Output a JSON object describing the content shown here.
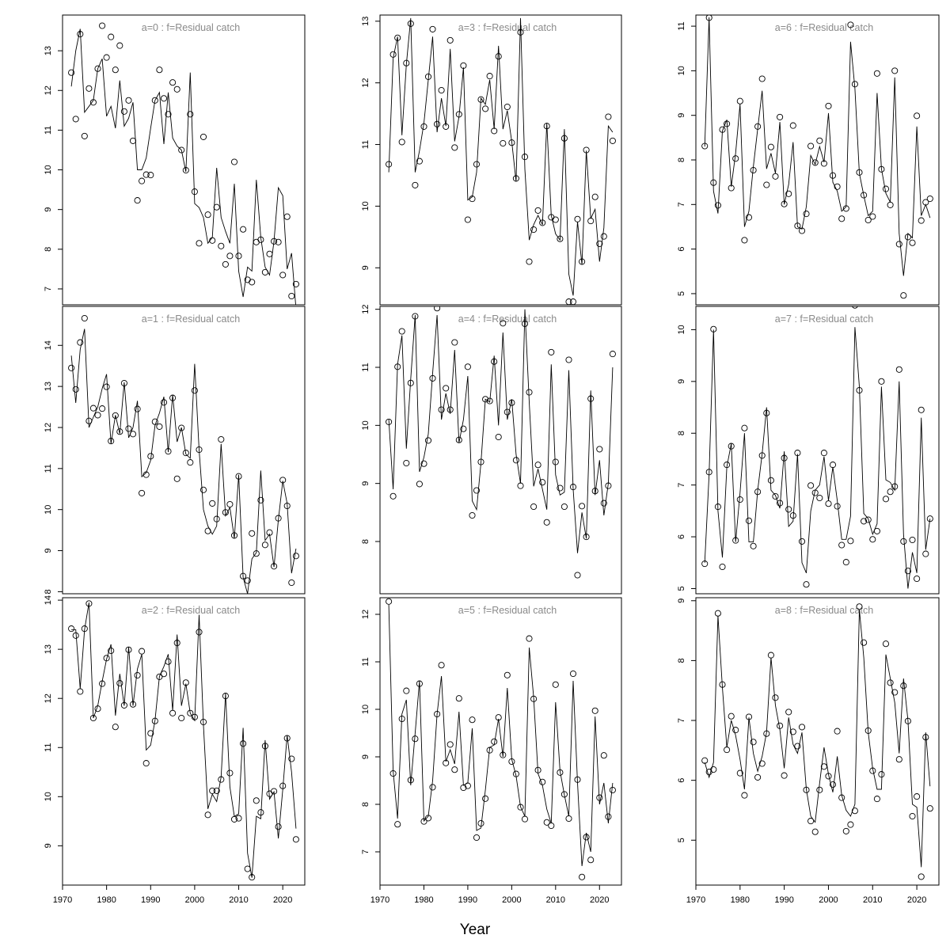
{
  "xlabel": "Year",
  "x_ticks": [
    1970,
    1980,
    1990,
    2000,
    2010,
    2020
  ],
  "years": [
    1972,
    1973,
    1974,
    1975,
    1976,
    1977,
    1978,
    1979,
    1980,
    1981,
    1982,
    1983,
    1984,
    1985,
    1986,
    1987,
    1988,
    1989,
    1990,
    1991,
    1992,
    1993,
    1994,
    1995,
    1996,
    1997,
    1998,
    1999,
    2000,
    2001,
    2002,
    2003,
    2004,
    2005,
    2006,
    2007,
    2008,
    2009,
    2010,
    2011,
    2012,
    2013,
    2014,
    2015,
    2016,
    2017,
    2018,
    2019,
    2020,
    2021,
    2022,
    2023
  ],
  "chart_data": [
    {
      "type": "scatter",
      "title": "a=0 : f=Residual catch",
      "xlim": [
        1970,
        2025
      ],
      "ylim": [
        6.6,
        13.9
      ],
      "y_ticks": [
        7,
        8,
        9,
        10,
        11,
        12,
        13
      ],
      "observed": [
        12.45,
        11.28,
        13.42,
        10.85,
        12.05,
        11.7,
        12.55,
        13.63,
        12.83,
        13.35,
        12.52,
        13.13,
        11.47,
        11.75,
        10.73,
        9.23,
        9.72,
        9.88,
        9.87,
        11.75,
        12.52,
        11.8,
        11.4,
        12.2,
        12.03,
        10.5,
        9.99,
        11.4,
        9.45,
        8.15,
        10.83,
        8.87,
        8.22,
        9.06,
        8.08,
        7.62,
        7.83,
        10.2,
        7.83,
        8.5,
        7.23,
        7.17,
        8.18,
        8.24,
        7.42,
        7.88,
        8.2,
        8.18,
        7.35,
        8.82,
        6.82,
        7.12
      ],
      "fitted": [
        12.1,
        13.0,
        13.55,
        11.45,
        11.6,
        11.75,
        12.55,
        12.8,
        11.35,
        11.6,
        11.05,
        12.25,
        11.1,
        11.3,
        11.7,
        10.0,
        10.0,
        10.3,
        11.05,
        11.75,
        11.95,
        10.65,
        11.95,
        10.8,
        10.6,
        10.5,
        9.95,
        12.45,
        9.15,
        9.05,
        8.8,
        8.15,
        8.3,
        10.05,
        8.8,
        8.45,
        8.15,
        9.65,
        7.45,
        6.8,
        7.55,
        7.45,
        9.75,
        8.3,
        7.55,
        7.35,
        8.2,
        9.55,
        9.35,
        7.5,
        7.9,
        6.5
      ]
    },
    {
      "type": "scatter",
      "title": "a=1 : f=Residual catch",
      "xlim": [
        1970,
        2025
      ],
      "ylim": [
        7.95,
        14.95
      ],
      "y_ticks": [
        8,
        9,
        10,
        11,
        12,
        13,
        14
      ],
      "observed": [
        13.45,
        12.93,
        14.07,
        14.66,
        12.16,
        12.47,
        12.3,
        12.46,
        12.99,
        11.67,
        12.29,
        11.9,
        13.08,
        11.97,
        11.84,
        12.45,
        10.4,
        10.85,
        11.3,
        12.14,
        12.02,
        12.61,
        11.42,
        12.72,
        10.75,
        11.99,
        11.38,
        11.15,
        12.9,
        11.46,
        10.48,
        9.48,
        10.15,
        9.77,
        11.71,
        9.93,
        10.13,
        9.37,
        10.81,
        8.38,
        8.27,
        9.42,
        8.93,
        10.23,
        9.14,
        9.44,
        8.62,
        9.79,
        10.72,
        10.09,
        8.22,
        8.87
      ],
      "fitted": [
        13.75,
        12.6,
        13.9,
        14.4,
        12.0,
        12.25,
        12.5,
        12.95,
        13.3,
        11.6,
        12.3,
        11.85,
        13.1,
        11.75,
        12.0,
        12.65,
        10.8,
        10.9,
        11.2,
        12.05,
        12.35,
        12.75,
        11.4,
        12.8,
        11.65,
        12.0,
        11.35,
        11.25,
        13.55,
        11.45,
        10.0,
        9.6,
        9.4,
        9.6,
        11.6,
        9.85,
        10.05,
        9.3,
        10.85,
        8.35,
        7.95,
        8.8,
        8.95,
        10.95,
        9.25,
        9.4,
        8.6,
        9.75,
        10.7,
        10.15,
        8.45,
        9.05
      ]
    },
    {
      "type": "scatter",
      "title": "a=2 : f=Residual catch",
      "xlim": [
        1970,
        2025
      ],
      "ylim": [
        8.2,
        14.05
      ],
      "y_ticks": [
        9,
        10,
        11,
        12,
        13,
        14
      ],
      "observed": [
        13.42,
        13.28,
        12.14,
        13.42,
        13.93,
        11.6,
        11.79,
        12.3,
        12.82,
        12.97,
        11.42,
        12.31,
        11.86,
        12.99,
        11.88,
        12.47,
        12.96,
        10.68,
        11.29,
        11.54,
        12.44,
        12.5,
        12.75,
        11.7,
        13.13,
        11.6,
        12.32,
        11.7,
        11.62,
        13.35,
        11.52,
        9.63,
        10.12,
        10.12,
        10.35,
        12.05,
        10.48,
        9.54,
        9.56,
        11.08,
        8.53,
        8.36,
        9.92,
        9.68,
        11.03,
        10.06,
        10.11,
        9.39,
        10.22,
        11.19,
        10.77,
        9.13
      ],
      "fitted": [
        13.4,
        13.4,
        12.2,
        13.4,
        13.95,
        11.6,
        11.85,
        12.35,
        12.8,
        13.1,
        11.65,
        12.5,
        11.85,
        13.05,
        11.85,
        12.6,
        12.9,
        10.95,
        11.05,
        11.55,
        12.45,
        12.65,
        12.9,
        11.75,
        13.3,
        11.85,
        12.3,
        11.7,
        11.55,
        13.7,
        11.45,
        9.75,
        10.05,
        9.9,
        10.4,
        12.1,
        10.2,
        9.6,
        9.65,
        11.4,
        8.85,
        8.35,
        9.6,
        9.55,
        11.15,
        9.95,
        10.1,
        9.15,
        10.15,
        11.25,
        10.5,
        9.35
      ]
    },
    {
      "type": "scatter",
      "title": "a=3 : f=Residual catch",
      "xlim": [
        1970,
        2025
      ],
      "ylim": [
        8.4,
        13.1
      ],
      "y_ticks": [
        9,
        10,
        11,
        12,
        13
      ],
      "observed": [
        10.68,
        12.46,
        12.73,
        11.04,
        12.32,
        12.96,
        10.34,
        10.73,
        11.29,
        12.1,
        12.87,
        11.33,
        11.88,
        11.29,
        12.69,
        10.95,
        11.49,
        12.28,
        9.78,
        10.12,
        10.68,
        11.73,
        11.58,
        12.11,
        11.22,
        12.43,
        11.02,
        11.61,
        11.03,
        10.45,
        12.82,
        10.8,
        9.1,
        9.62,
        9.93,
        9.73,
        11.3,
        9.82,
        9.78,
        9.47,
        11.1,
        8.45,
        8.45,
        9.79,
        9.1,
        10.91,
        9.76,
        10.15,
        9.39,
        9.51,
        11.45,
        11.06
      ],
      "fitted": [
        10.55,
        12.4,
        12.75,
        11.15,
        12.3,
        13.05,
        10.55,
        10.9,
        11.35,
        12.05,
        12.75,
        11.2,
        11.75,
        11.3,
        12.55,
        11.05,
        11.45,
        12.25,
        10.1,
        10.15,
        10.55,
        11.75,
        11.65,
        12.05,
        11.25,
        12.6,
        11.25,
        11.55,
        11.05,
        10.4,
        13.05,
        10.6,
        9.45,
        9.7,
        9.85,
        9.7,
        11.35,
        9.85,
        9.55,
        9.45,
        11.25,
        8.9,
        8.55,
        9.75,
        9.05,
        10.9,
        9.8,
        9.95,
        9.1,
        9.65,
        11.3,
        11.2
      ]
    },
    {
      "type": "scatter",
      "title": "a=4 : f=Residual catch",
      "xlim": [
        1970,
        2025
      ],
      "ylim": [
        7.1,
        12.05
      ],
      "y_ticks": [
        8,
        9,
        10,
        11,
        12
      ],
      "observed": [
        10.06,
        8.78,
        11.01,
        11.62,
        9.35,
        10.73,
        11.88,
        8.99,
        9.34,
        9.74,
        10.81,
        12.02,
        10.27,
        10.64,
        10.27,
        11.43,
        9.75,
        9.94,
        11.01,
        8.45,
        8.88,
        9.37,
        10.45,
        10.42,
        11.1,
        9.8,
        11.76,
        10.23,
        10.39,
        9.4,
        8.96,
        11.75,
        10.57,
        8.6,
        9.32,
        9.02,
        8.33,
        11.26,
        9.37,
        8.92,
        8.6,
        11.13,
        8.94,
        7.42,
        8.61,
        8.08,
        10.46,
        8.87,
        9.59,
        8.66,
        8.96,
        11.23
      ],
      "fitted": [
        10.1,
        8.9,
        11.05,
        11.55,
        9.6,
        10.8,
        11.9,
        9.2,
        9.45,
        9.85,
        10.9,
        11.9,
        10.1,
        10.55,
        10.2,
        11.3,
        9.7,
        10.1,
        10.85,
        8.7,
        8.55,
        9.35,
        10.45,
        10.4,
        11.2,
        10.0,
        11.6,
        10.1,
        10.45,
        9.5,
        9.0,
        12.0,
        10.4,
        8.95,
        9.25,
        8.9,
        8.55,
        11.05,
        9.15,
        8.8,
        8.85,
        10.95,
        8.9,
        7.8,
        8.5,
        8.05,
        10.6,
        8.8,
        9.4,
        8.45,
        9.0,
        11.0
      ]
    },
    {
      "type": "scatter",
      "title": "a=5 : f=Residual catch",
      "xlim": [
        1970,
        2025
      ],
      "ylim": [
        6.3,
        12.35
      ],
      "y_ticks": [
        7,
        8,
        9,
        10,
        11,
        12
      ],
      "observed": [
        12.27,
        8.65,
        7.58,
        9.8,
        10.39,
        8.51,
        9.38,
        10.54,
        7.64,
        7.71,
        8.36,
        9.9,
        10.93,
        8.87,
        9.26,
        8.73,
        10.23,
        8.35,
        8.39,
        9.78,
        7.3,
        7.6,
        8.12,
        9.14,
        9.32,
        9.83,
        9.04,
        10.72,
        8.9,
        8.64,
        7.94,
        7.69,
        11.49,
        10.22,
        8.72,
        8.47,
        7.62,
        7.55,
        10.52,
        8.67,
        8.21,
        7.7,
        10.75,
        8.52,
        6.47,
        7.31,
        6.83,
        9.97,
        8.14,
        9.03,
        7.74,
        8.3
      ],
      "fitted": [
        12.2,
        8.7,
        7.7,
        9.9,
        10.2,
        8.4,
        9.5,
        10.6,
        7.65,
        7.75,
        8.5,
        9.9,
        10.7,
        8.9,
        9.15,
        8.85,
        9.95,
        8.4,
        8.45,
        9.6,
        7.45,
        7.5,
        8.3,
        9.2,
        9.25,
        9.8,
        9.0,
        10.45,
        8.95,
        8.6,
        7.95,
        7.75,
        11.3,
        10.25,
        8.65,
        8.4,
        7.9,
        7.6,
        10.15,
        8.7,
        8.2,
        7.75,
        10.6,
        8.45,
        6.7,
        7.4,
        7.0,
        9.85,
        8.0,
        8.45,
        7.6,
        8.45
      ]
    },
    {
      "type": "scatter",
      "title": "a=6 : f=Residual catch",
      "xlim": [
        1970,
        2025
      ],
      "ylim": [
        4.75,
        11.25
      ],
      "y_ticks": [
        5,
        6,
        7,
        8,
        9,
        10,
        11
      ],
      "observed": [
        8.31,
        11.19,
        7.49,
        6.98,
        8.68,
        8.81,
        7.37,
        8.03,
        9.32,
        6.2,
        6.71,
        7.77,
        8.75,
        9.82,
        7.44,
        8.29,
        7.63,
        8.96,
        7.01,
        7.24,
        8.77,
        6.52,
        6.41,
        6.79,
        8.31,
        7.94,
        8.43,
        7.92,
        9.21,
        7.65,
        7.4,
        6.68,
        6.91,
        11.03,
        9.7,
        7.72,
        7.21,
        6.65,
        6.73,
        9.94,
        7.79,
        7.35,
        6.99,
        10.0,
        6.11,
        4.96,
        6.27,
        6.14,
        8.99,
        6.64,
        7.05,
        7.13
      ],
      "fitted": [
        8.3,
        11.2,
        7.3,
        6.8,
        8.65,
        8.9,
        7.4,
        8.15,
        9.25,
        6.5,
        6.85,
        7.85,
        8.7,
        9.55,
        7.8,
        8.15,
        7.7,
        8.85,
        7.0,
        7.45,
        8.4,
        6.5,
        6.45,
        6.95,
        8.1,
        7.9,
        8.3,
        7.95,
        9.05,
        7.5,
        7.3,
        6.85,
        6.95,
        10.65,
        9.6,
        7.7,
        7.2,
        6.75,
        6.85,
        9.5,
        7.8,
        7.25,
        7.05,
        9.85,
        6.35,
        5.4,
        6.35,
        6.25,
        8.75,
        6.75,
        7.0,
        6.7
      ]
    },
    {
      "type": "scatter",
      "title": "a=7 : f=Residual catch",
      "xlim": [
        1970,
        2025
      ],
      "ylim": [
        4.9,
        10.45
      ],
      "y_ticks": [
        5,
        6,
        7,
        8,
        9,
        10
      ],
      "observed": [
        5.48,
        7.25,
        10.01,
        6.58,
        5.42,
        7.39,
        7.75,
        5.93,
        6.72,
        8.1,
        6.31,
        5.82,
        6.87,
        7.57,
        8.39,
        7.09,
        6.78,
        6.65,
        7.52,
        6.53,
        6.41,
        7.62,
        5.91,
        5.08,
        6.99,
        6.85,
        6.75,
        7.62,
        6.64,
        7.39,
        6.59,
        5.84,
        5.51,
        5.92,
        10.47,
        8.83,
        6.3,
        6.33,
        5.95,
        6.11,
        9.0,
        6.73,
        6.87,
        6.97,
        9.23,
        5.91,
        5.34,
        5.94,
        5.19,
        8.45,
        5.67,
        6.35
      ],
      "fitted": [
        5.5,
        7.2,
        10.0,
        6.5,
        5.6,
        7.35,
        7.8,
        5.9,
        6.85,
        8.0,
        5.9,
        5.9,
        6.9,
        7.6,
        8.5,
        6.9,
        6.8,
        6.55,
        7.65,
        6.2,
        6.3,
        7.6,
        5.5,
        5.3,
        6.5,
        6.9,
        7.0,
        7.55,
        6.7,
        7.35,
        6.7,
        5.95,
        5.95,
        6.4,
        10.05,
        8.9,
        6.45,
        6.35,
        6.05,
        6.25,
        8.9,
        7.1,
        7.05,
        6.9,
        9.0,
        6.05,
        5.0,
        5.7,
        5.3,
        8.3,
        5.75,
        6.35
      ]
    },
    {
      "type": "scatter",
      "title": "a=8 : f=Residual catch",
      "xlim": [
        1970,
        2025
      ],
      "ylim": [
        4.25,
        9.05
      ],
      "y_ticks": [
        5,
        6,
        7,
        8,
        9
      ],
      "observed": [
        6.33,
        6.14,
        6.18,
        8.79,
        7.6,
        6.51,
        7.07,
        6.84,
        6.12,
        5.75,
        7.06,
        6.64,
        6.05,
        6.28,
        6.78,
        8.09,
        7.38,
        6.91,
        6.08,
        7.14,
        6.81,
        6.57,
        6.89,
        5.84,
        5.32,
        5.14,
        5.84,
        6.23,
        6.07,
        5.93,
        6.82,
        5.71,
        5.15,
        5.26,
        5.49,
        8.9,
        8.3,
        6.83,
        6.16,
        5.69,
        6.1,
        8.28,
        7.63,
        7.47,
        6.35,
        7.58,
        6.99,
        5.4,
        5.73,
        4.39,
        6.72,
        5.53
      ],
      "fitted": [
        6.3,
        6.05,
        6.3,
        8.75,
        7.55,
        6.55,
        7.0,
        6.75,
        6.35,
        5.85,
        7.05,
        6.45,
        6.15,
        6.4,
        6.8,
        8.05,
        7.25,
        6.85,
        6.2,
        7.05,
        6.6,
        6.45,
        6.8,
        5.85,
        5.4,
        5.3,
        5.95,
        6.55,
        6.1,
        5.8,
        6.4,
        5.75,
        5.5,
        5.4,
        5.6,
        8.85,
        8.05,
        6.8,
        6.2,
        5.85,
        5.85,
        8.1,
        7.7,
        7.3,
        6.45,
        7.7,
        7.0,
        5.6,
        5.55,
        4.55,
        6.8,
        5.9
      ]
    }
  ]
}
